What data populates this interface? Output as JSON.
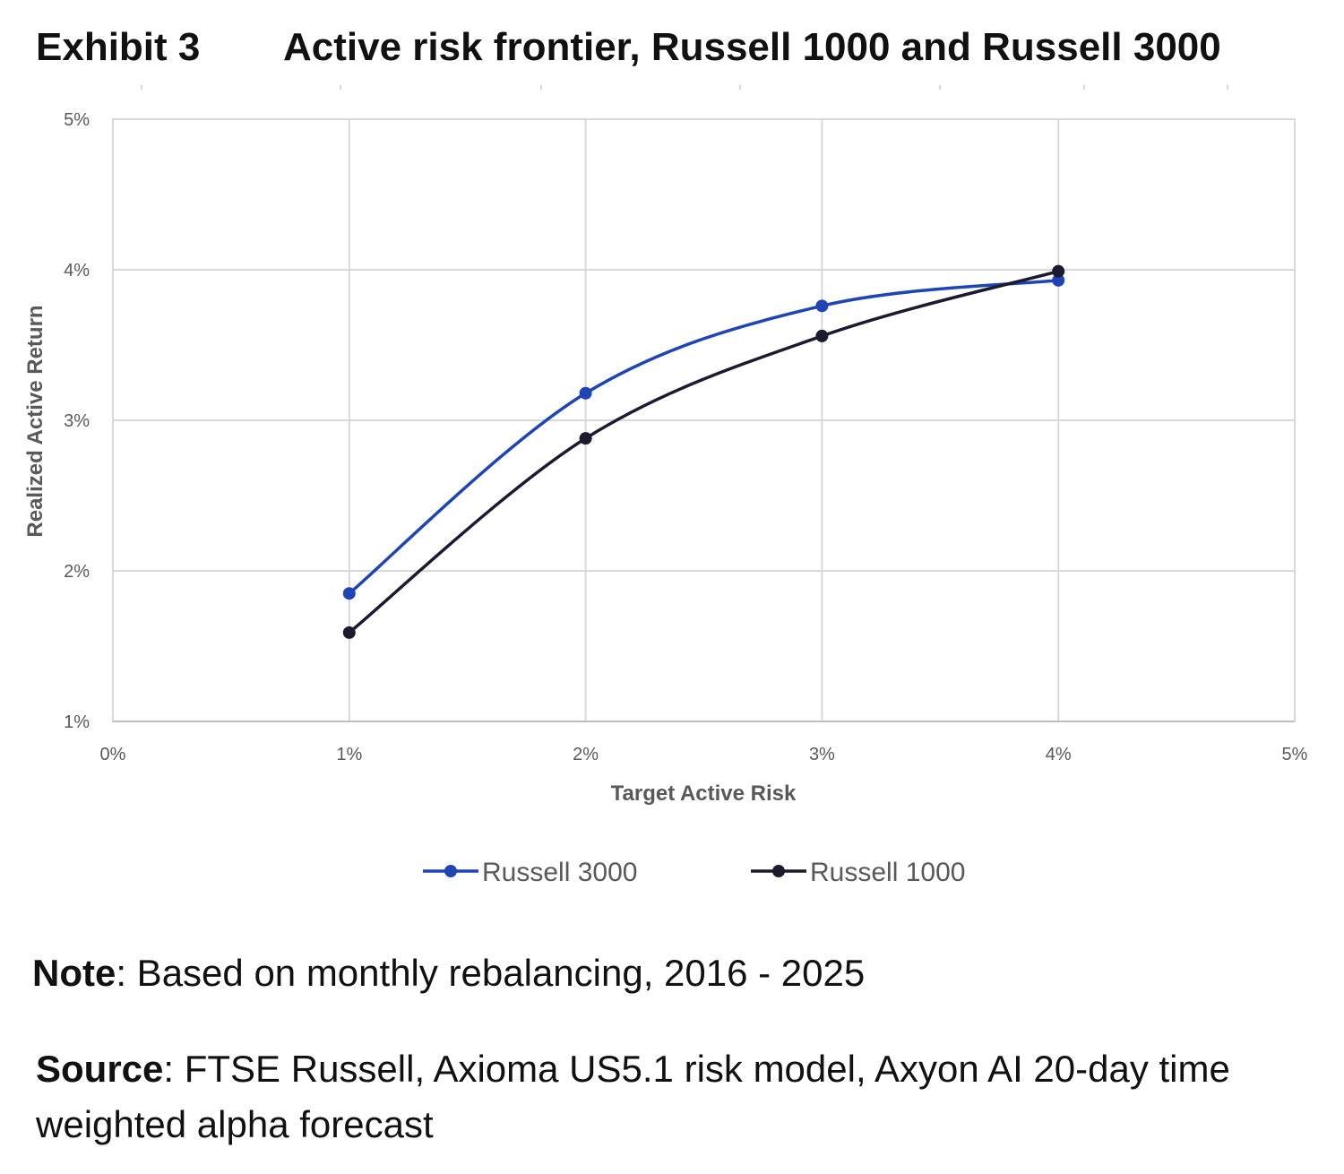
{
  "header": {
    "exhibit_label": "Exhibit 3",
    "title": "Active risk frontier, Russell 1000 and Russell 3000"
  },
  "chart_data": {
    "type": "line",
    "xlabel": "Target Active Risk",
    "ylabel": "Realized Active Return",
    "x_ticks": [
      "0%",
      "1%",
      "2%",
      "3%",
      "4%",
      "5%"
    ],
    "y_ticks": [
      "1%",
      "2%",
      "3%",
      "4%",
      "5%"
    ],
    "xlim": [
      0,
      5
    ],
    "ylim": [
      1,
      5
    ],
    "grid": true,
    "smooth": true,
    "legend_position": "bottom-center",
    "series": [
      {
        "name": "Russell 3000",
        "color": "#1f45b5",
        "x": [
          1,
          2,
          3,
          4
        ],
        "y": [
          1.85,
          3.18,
          3.76,
          3.93
        ]
      },
      {
        "name": "Russell 1000",
        "color": "#1c1a2e",
        "x": [
          1,
          2,
          3,
          4
        ],
        "y": [
          1.59,
          2.88,
          3.56,
          3.99
        ]
      }
    ]
  },
  "note": {
    "label": "Note",
    "text": ": Based on monthly rebalancing, 2016 - 2025"
  },
  "source": {
    "label": "Source",
    "text": ": FTSE Russell, Axioma US5.1 risk model, Axyon AI 20-day time weighted alpha forecast"
  }
}
